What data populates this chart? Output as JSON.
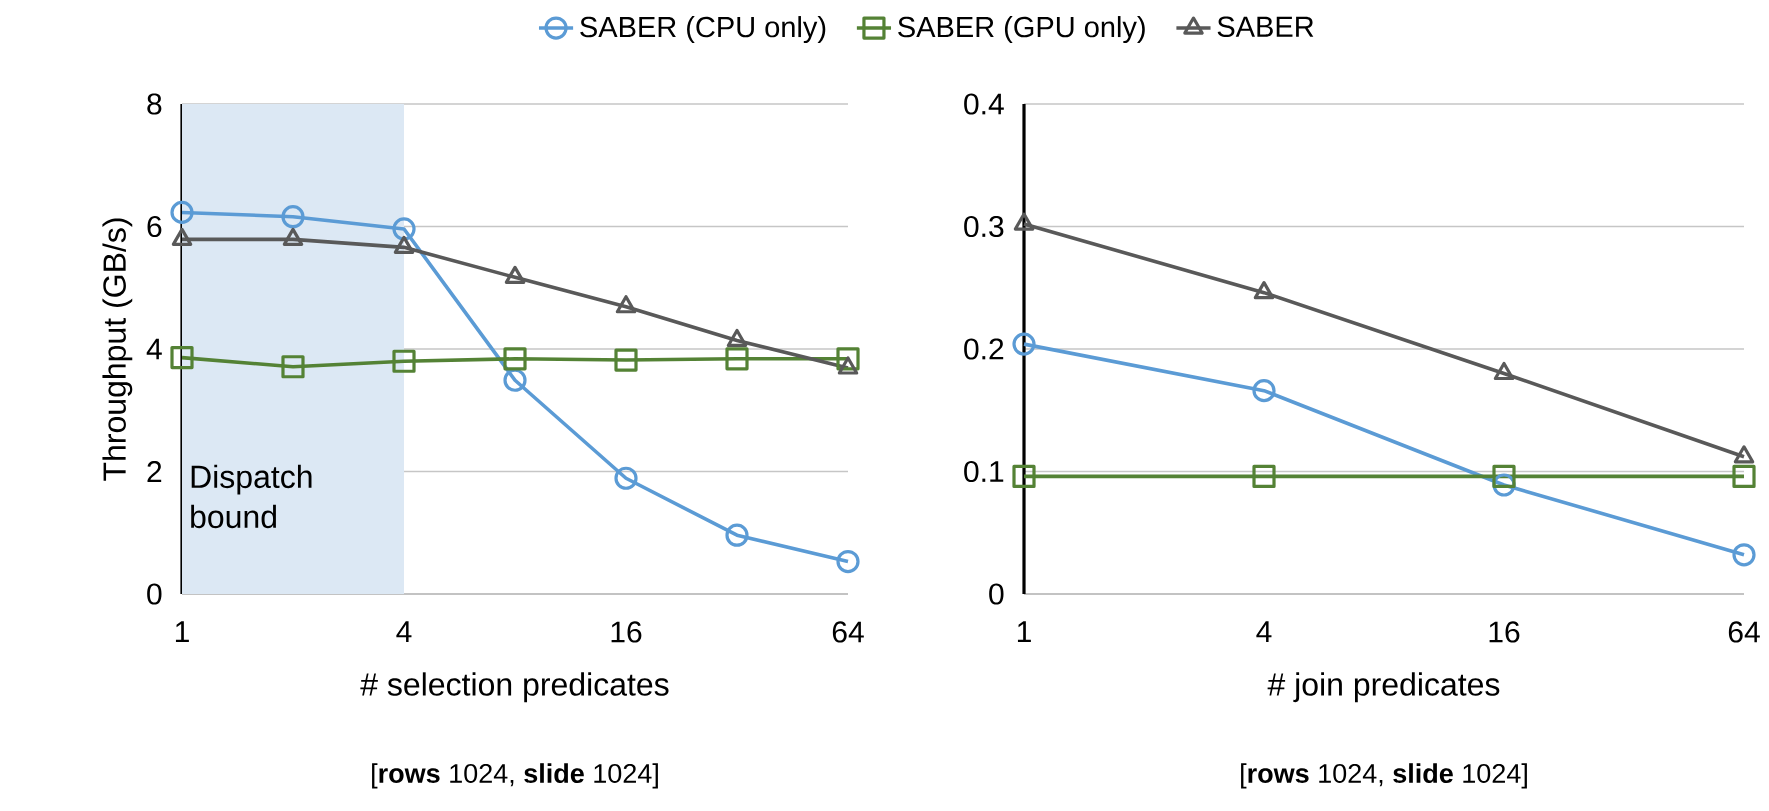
{
  "chart_data": [
    {
      "type": "line",
      "x": [
        1,
        2,
        4,
        8,
        16,
        32,
        64
      ],
      "xlim": [
        1,
        64
      ],
      "xticks": [
        1,
        4,
        16,
        64
      ],
      "ylim": [
        0,
        8
      ],
      "yticks": [
        0,
        2,
        4,
        6,
        8
      ],
      "log": "x",
      "grid": "y",
      "legend": "top",
      "xlabel": "# selection predicates",
      "ylabel": "Throughput (GB/s)",
      "series": [
        {
          "name": "SABER (CPU only)",
          "color": "#5b9bd5",
          "marker": "circle",
          "values": [
            6.23,
            6.16,
            5.96,
            3.49,
            1.89,
            0.96,
            0.53
          ]
        },
        {
          "name": "SABER (GPU only)",
          "color": "#548235",
          "marker": "square",
          "values": [
            3.86,
            3.71,
            3.8,
            3.84,
            3.82,
            3.84,
            3.84
          ]
        },
        {
          "name": "SABER",
          "color": "#595959",
          "marker": "triangle",
          "values": [
            5.79,
            5.79,
            5.66,
            5.17,
            4.69,
            4.14,
            3.69
          ]
        }
      ],
      "bands": [
        {
          "axis": "x",
          "from": 1,
          "to": 4,
          "label": "Dispatch bound",
          "color": "#dce8f4"
        }
      ],
      "annotations": [
        "[**rows** 1024, **slide** 1024]"
      ]
    },
    {
      "type": "line",
      "x": [
        1,
        4,
        16,
        64
      ],
      "xlim": [
        1,
        64
      ],
      "xticks": [
        1,
        4,
        16,
        64
      ],
      "ylim": [
        0,
        0.4
      ],
      "yticks": [
        0,
        0.1,
        0.2,
        0.3,
        0.4
      ],
      "log": "x",
      "grid": "y",
      "xlabel": "# join predicates",
      "series": [
        {
          "color": "#5b9bd5",
          "marker": "circle",
          "values": [
            0.204,
            0.166,
            0.089,
            0.032
          ]
        },
        {
          "color": "#548235",
          "marker": "square",
          "values": [
            0.096,
            0.096,
            0.096,
            0.096
          ]
        },
        {
          "color": "#595959",
          "marker": "triangle",
          "values": [
            0.302,
            0.246,
            0.18,
            0.112
          ]
        }
      ],
      "annotations": [
        "[**rows** 1024, **slide** 1024]"
      ]
    }
  ]
}
